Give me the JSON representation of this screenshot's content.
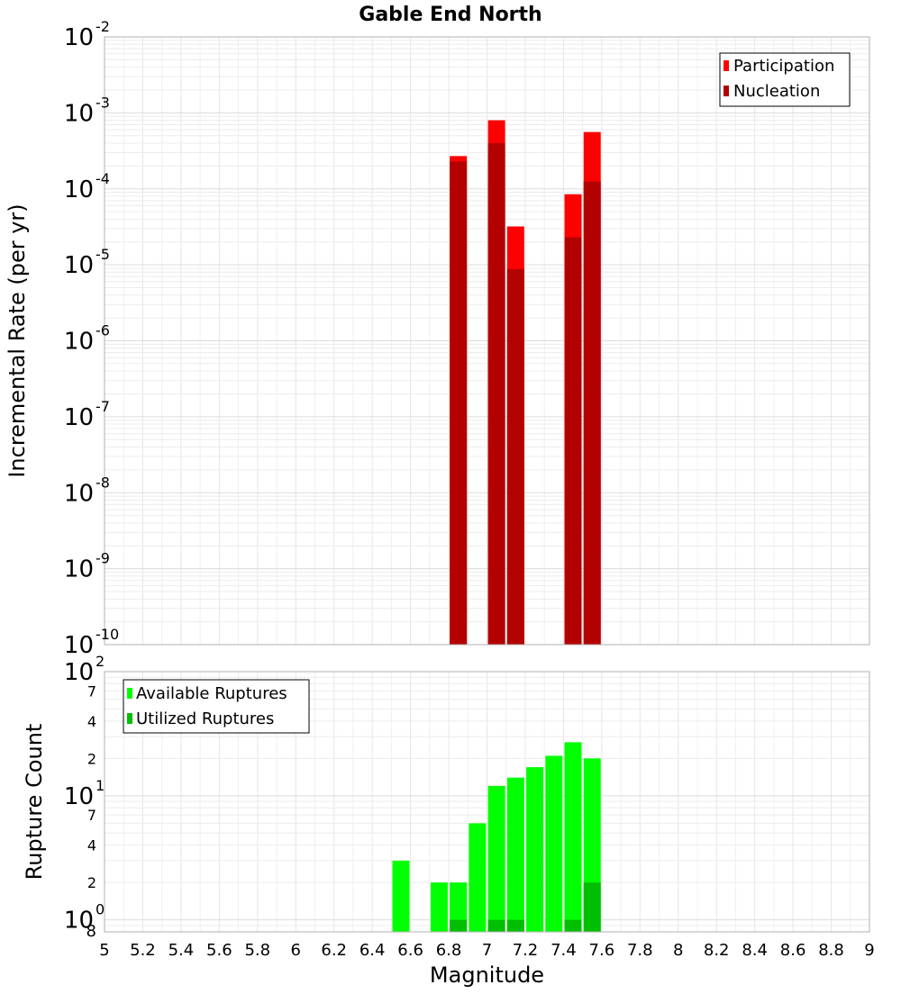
{
  "colors": {
    "participation": "#ff0000",
    "nucleation": "#b30000",
    "available": "#00ff00",
    "utilized": "#00bf00"
  },
  "chart_data": [
    {
      "type": "bar",
      "title": "Gable End North",
      "xlabel": "",
      "ylabel": "Incremental Rate (per yr)",
      "xlim": [
        5,
        9
      ],
      "ylim": [
        1e-10,
        0.01
      ],
      "y_scale": "log",
      "grid": true,
      "legend_position": "top-right",
      "y_tick_labels": [
        {
          "base": "10",
          "exp": "-10",
          "value": 1e-10
        },
        {
          "base": "10",
          "exp": "-9",
          "value": 1e-09
        },
        {
          "base": "10",
          "exp": "-8",
          "value": 1e-08
        },
        {
          "base": "10",
          "exp": "-7",
          "value": 1e-07
        },
        {
          "base": "10",
          "exp": "-6",
          "value": 1e-06
        },
        {
          "base": "10",
          "exp": "-5",
          "value": 1e-05
        },
        {
          "base": "10",
          "exp": "-4",
          "value": 0.0001
        },
        {
          "base": "10",
          "exp": "-3",
          "value": 0.001
        },
        {
          "base": "10",
          "exp": "-2",
          "value": 0.01
        }
      ],
      "series": [
        {
          "name": "Participation",
          "x": [
            6.85,
            7.05,
            7.15,
            7.45,
            7.55
          ],
          "values": [
            0.00027,
            0.0008,
            3.2e-05,
            8.5e-05,
            0.00056
          ]
        },
        {
          "name": "Nucleation",
          "x": [
            6.85,
            7.05,
            7.15,
            7.45,
            7.55
          ],
          "values": [
            0.00023,
            0.0004,
            8.8e-06,
            2.3e-05,
            0.000125
          ]
        }
      ]
    },
    {
      "type": "bar",
      "title": "",
      "xlabel": "Magnitude",
      "ylabel": "Rupture Count",
      "xlim": [
        5,
        9
      ],
      "ylim": [
        0.8,
        100
      ],
      "y_scale": "log",
      "grid": true,
      "legend_position": "top-left",
      "x_tick_labels": [
        "5",
        "5.2",
        "5.4",
        "5.6",
        "5.8",
        "6",
        "6.2",
        "6.4",
        "6.6",
        "6.8",
        "7",
        "7.2",
        "7.4",
        "7.6",
        "7.8",
        "8",
        "8.2",
        "8.4",
        "8.6",
        "8.8",
        "9"
      ],
      "y_major_labels": [
        {
          "base": "10",
          "exp": "0",
          "value": 1
        },
        {
          "base": "10",
          "exp": "1",
          "value": 10
        },
        {
          "base": "10",
          "exp": "2",
          "value": 100
        }
      ],
      "y_minor_labels": [
        {
          "label": "8",
          "value": 0.8
        },
        {
          "label": "2",
          "value": 2
        },
        {
          "label": "4",
          "value": 4
        },
        {
          "label": "7",
          "value": 7
        },
        {
          "label": "2",
          "value": 20
        },
        {
          "label": "4",
          "value": 40
        },
        {
          "label": "7",
          "value": 70
        }
      ],
      "series": [
        {
          "name": "Available Ruptures",
          "x": [
            6.55,
            6.75,
            6.85,
            6.95,
            7.05,
            7.15,
            7.25,
            7.35,
            7.45,
            7.55
          ],
          "values": [
            3,
            2,
            2,
            6,
            12,
            14,
            17,
            21,
            27,
            20
          ]
        },
        {
          "name": "Utilized Ruptures",
          "x": [
            6.85,
            7.05,
            7.15,
            7.45,
            7.55
          ],
          "values": [
            1,
            1,
            1,
            1,
            2
          ]
        }
      ]
    }
  ]
}
